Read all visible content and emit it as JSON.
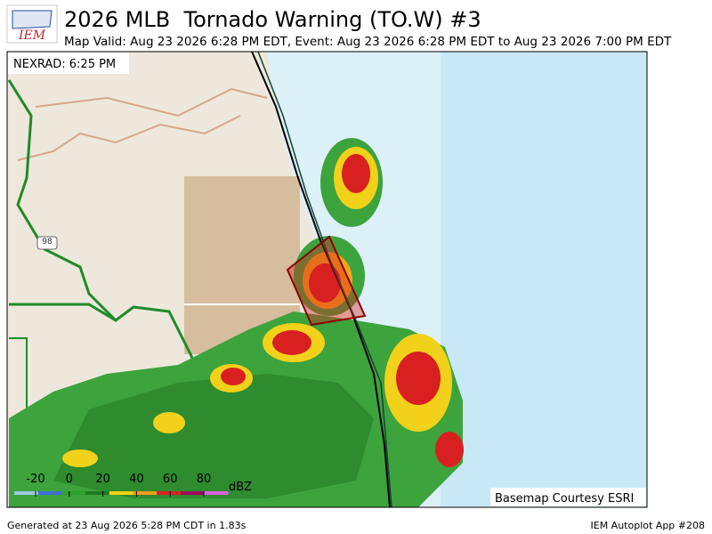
{
  "header": {
    "title": "2026 MLB  Tornado Warning (TO.W) #3",
    "subtitle": "Map Valid: Aug 23 2026 6:28 PM EDT, Event: Aug 23 2026 6:28 PM EDT to Aug 23 2026 7:00 PM EDT"
  },
  "logo": "IEM",
  "map": {
    "radar_label": "NEXRAD: 6:25 PM",
    "basemap_credit": "Basemap Courtesy ESRI",
    "road_label": "98"
  },
  "colorbar": {
    "ticks": [
      -20,
      0,
      20,
      40,
      60,
      80
    ],
    "unit": "dBZ"
  },
  "footer": {
    "left": "Generated at 23 Aug 2026 5:28 PM CDT in 1.83s",
    "right": "IEM Autoplot App #208"
  }
}
